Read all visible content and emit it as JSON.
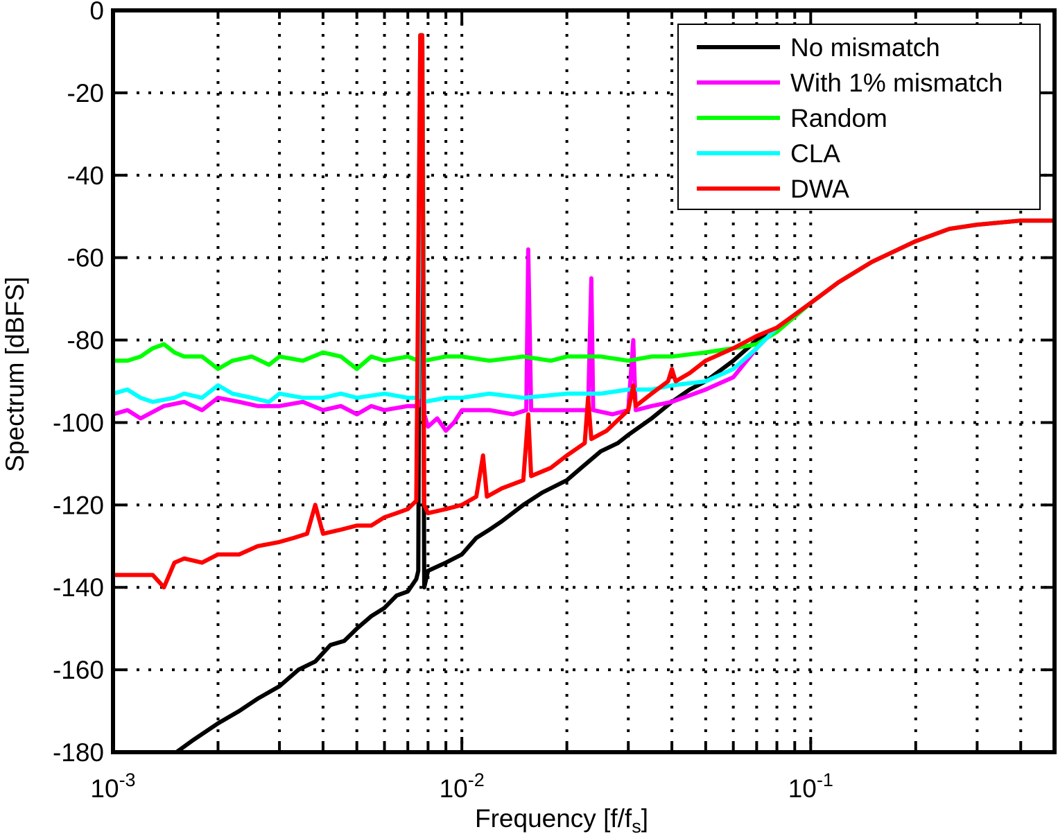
{
  "chart_data": {
    "type": "line",
    "title": "",
    "xlabel": "Frequency [f/f",
    "xlabel_sub": "s",
    "xlabel_end": "]",
    "ylabel": "Spectrum [dBFS]",
    "xscale": "log",
    "xlim": [
      0.001,
      0.5
    ],
    "ylim": [
      -180,
      0
    ],
    "grid": true,
    "legend_position": "top-right",
    "x_ticks": [
      {
        "value": 0.001,
        "base": "10",
        "exp": "-3"
      },
      {
        "value": 0.01,
        "base": "10",
        "exp": "-2"
      },
      {
        "value": 0.1,
        "base": "10",
        "exp": "-1"
      }
    ],
    "y_ticks": [
      0,
      -20,
      -40,
      -60,
      -80,
      -100,
      -120,
      -140,
      -160,
      -180
    ],
    "series": [
      {
        "name": "No mismatch",
        "color": "#000000",
        "points": [
          [
            0.00152,
            -180
          ],
          [
            0.0017,
            -177
          ],
          [
            0.002,
            -173
          ],
          [
            0.0023,
            -170
          ],
          [
            0.0026,
            -167
          ],
          [
            0.003,
            -164
          ],
          [
            0.0034,
            -160
          ],
          [
            0.0038,
            -158
          ],
          [
            0.0042,
            -154
          ],
          [
            0.0046,
            -153
          ],
          [
            0.005,
            -150
          ],
          [
            0.0055,
            -147
          ],
          [
            0.006,
            -145
          ],
          [
            0.0065,
            -142
          ],
          [
            0.007,
            -141
          ],
          [
            0.0074,
            -138
          ],
          [
            0.0075,
            -136
          ],
          [
            0.0076,
            -6
          ],
          [
            0.0077,
            -6
          ],
          [
            0.0078,
            -140
          ],
          [
            0.008,
            -136
          ],
          [
            0.009,
            -134
          ],
          [
            0.01,
            -132
          ],
          [
            0.011,
            -128
          ],
          [
            0.012,
            -126
          ],
          [
            0.013,
            -124
          ],
          [
            0.015,
            -120
          ],
          [
            0.017,
            -117
          ],
          [
            0.02,
            -114
          ],
          [
            0.022,
            -111
          ],
          [
            0.025,
            -107
          ],
          [
            0.028,
            -105
          ],
          [
            0.03,
            -103
          ],
          [
            0.035,
            -99
          ],
          [
            0.04,
            -95
          ],
          [
            0.045,
            -92
          ],
          [
            0.05,
            -90
          ],
          [
            0.06,
            -85
          ],
          [
            0.07,
            -80
          ],
          [
            0.08,
            -77
          ],
          [
            0.1,
            -71
          ],
          [
            0.12,
            -66
          ],
          [
            0.15,
            -61
          ],
          [
            0.2,
            -56
          ],
          [
            0.25,
            -53
          ],
          [
            0.3,
            -52
          ],
          [
            0.4,
            -51
          ],
          [
            0.5,
            -51
          ]
        ]
      },
      {
        "name": "With 1% mismatch",
        "color": "#ff00ff",
        "points": [
          [
            0.001,
            -98
          ],
          [
            0.0011,
            -97
          ],
          [
            0.0012,
            -99
          ],
          [
            0.0014,
            -96
          ],
          [
            0.0016,
            -95
          ],
          [
            0.0018,
            -97
          ],
          [
            0.002,
            -94
          ],
          [
            0.0023,
            -95
          ],
          [
            0.0026,
            -96
          ],
          [
            0.003,
            -96
          ],
          [
            0.0035,
            -95
          ],
          [
            0.004,
            -97
          ],
          [
            0.0045,
            -96
          ],
          [
            0.005,
            -98
          ],
          [
            0.0055,
            -96
          ],
          [
            0.006,
            -97
          ],
          [
            0.007,
            -96
          ],
          [
            0.0075,
            -96
          ],
          [
            0.0076,
            -6
          ],
          [
            0.0077,
            -6
          ],
          [
            0.0078,
            -98
          ],
          [
            0.008,
            -101
          ],
          [
            0.0085,
            -99
          ],
          [
            0.009,
            -102
          ],
          [
            0.0095,
            -100
          ],
          [
            0.01,
            -97
          ],
          [
            0.012,
            -97
          ],
          [
            0.014,
            -98
          ],
          [
            0.0153,
            -97
          ],
          [
            0.0155,
            -58
          ],
          [
            0.0158,
            -97
          ],
          [
            0.018,
            -97
          ],
          [
            0.02,
            -97
          ],
          [
            0.023,
            -97
          ],
          [
            0.0235,
            -65
          ],
          [
            0.0238,
            -97
          ],
          [
            0.027,
            -98
          ],
          [
            0.03,
            -97
          ],
          [
            0.031,
            -80
          ],
          [
            0.0315,
            -97
          ],
          [
            0.035,
            -96
          ],
          [
            0.04,
            -95
          ],
          [
            0.05,
            -92
          ],
          [
            0.06,
            -89
          ],
          [
            0.07,
            -82
          ],
          [
            0.08,
            -77
          ],
          [
            0.1,
            -71
          ],
          [
            0.12,
            -66
          ],
          [
            0.15,
            -61
          ],
          [
            0.2,
            -56
          ],
          [
            0.25,
            -53
          ],
          [
            0.3,
            -52
          ],
          [
            0.4,
            -51
          ],
          [
            0.5,
            -51
          ]
        ]
      },
      {
        "name": "Random",
        "color": "#00ff00",
        "points": [
          [
            0.001,
            -85
          ],
          [
            0.0011,
            -85
          ],
          [
            0.0012,
            -84
          ],
          [
            0.0013,
            -82
          ],
          [
            0.0014,
            -81
          ],
          [
            0.0015,
            -83
          ],
          [
            0.0016,
            -84
          ],
          [
            0.0018,
            -84
          ],
          [
            0.002,
            -87
          ],
          [
            0.0022,
            -85
          ],
          [
            0.0025,
            -84
          ],
          [
            0.0028,
            -86
          ],
          [
            0.003,
            -84
          ],
          [
            0.0035,
            -85
          ],
          [
            0.004,
            -83
          ],
          [
            0.0045,
            -84
          ],
          [
            0.005,
            -87
          ],
          [
            0.0055,
            -84
          ],
          [
            0.006,
            -85
          ],
          [
            0.007,
            -84
          ],
          [
            0.0075,
            -85
          ],
          [
            0.0076,
            -6
          ],
          [
            0.0077,
            -6
          ],
          [
            0.0078,
            -85
          ],
          [
            0.009,
            -84
          ],
          [
            0.01,
            -84
          ],
          [
            0.012,
            -85
          ],
          [
            0.015,
            -84
          ],
          [
            0.018,
            -85
          ],
          [
            0.02,
            -84
          ],
          [
            0.025,
            -84
          ],
          [
            0.03,
            -85
          ],
          [
            0.035,
            -84
          ],
          [
            0.04,
            -84
          ],
          [
            0.05,
            -83
          ],
          [
            0.06,
            -82
          ],
          [
            0.07,
            -81
          ],
          [
            0.08,
            -78
          ],
          [
            0.1,
            -71
          ],
          [
            0.12,
            -66
          ],
          [
            0.15,
            -61
          ],
          [
            0.2,
            -56
          ],
          [
            0.25,
            -53
          ],
          [
            0.3,
            -52
          ],
          [
            0.4,
            -51
          ],
          [
            0.5,
            -51
          ]
        ]
      },
      {
        "name": "CLA",
        "color": "#00ffff",
        "points": [
          [
            0.001,
            -93
          ],
          [
            0.0011,
            -92
          ],
          [
            0.0012,
            -94
          ],
          [
            0.0013,
            -95
          ],
          [
            0.0015,
            -94
          ],
          [
            0.0016,
            -93
          ],
          [
            0.0018,
            -94
          ],
          [
            0.002,
            -91
          ],
          [
            0.0022,
            -93
          ],
          [
            0.0025,
            -94
          ],
          [
            0.0028,
            -95
          ],
          [
            0.003,
            -93
          ],
          [
            0.0035,
            -94
          ],
          [
            0.004,
            -94
          ],
          [
            0.0045,
            -93
          ],
          [
            0.005,
            -94
          ],
          [
            0.006,
            -93
          ],
          [
            0.007,
            -94
          ],
          [
            0.0075,
            -94
          ],
          [
            0.0076,
            -6
          ],
          [
            0.0077,
            -6
          ],
          [
            0.0078,
            -95
          ],
          [
            0.009,
            -94
          ],
          [
            0.01,
            -94
          ],
          [
            0.012,
            -93
          ],
          [
            0.015,
            -94
          ],
          [
            0.02,
            -93
          ],
          [
            0.025,
            -93
          ],
          [
            0.03,
            -92
          ],
          [
            0.035,
            -92
          ],
          [
            0.04,
            -91
          ],
          [
            0.05,
            -90
          ],
          [
            0.06,
            -87
          ],
          [
            0.07,
            -82
          ],
          [
            0.08,
            -77
          ],
          [
            0.1,
            -71
          ],
          [
            0.12,
            -66
          ],
          [
            0.15,
            -61
          ],
          [
            0.2,
            -56
          ],
          [
            0.25,
            -53
          ],
          [
            0.3,
            -52
          ],
          [
            0.4,
            -51
          ],
          [
            0.5,
            -51
          ]
        ]
      },
      {
        "name": "DWA",
        "color": "#ff0000",
        "points": [
          [
            0.001,
            -137
          ],
          [
            0.0012,
            -137
          ],
          [
            0.0013,
            -137
          ],
          [
            0.0014,
            -140
          ],
          [
            0.0015,
            -134
          ],
          [
            0.0016,
            -133
          ],
          [
            0.0018,
            -134
          ],
          [
            0.002,
            -132
          ],
          [
            0.0023,
            -132
          ],
          [
            0.0026,
            -130
          ],
          [
            0.003,
            -129
          ],
          [
            0.0033,
            -128
          ],
          [
            0.0036,
            -127
          ],
          [
            0.0038,
            -120
          ],
          [
            0.004,
            -127
          ],
          [
            0.0045,
            -126
          ],
          [
            0.005,
            -125
          ],
          [
            0.0055,
            -125
          ],
          [
            0.006,
            -123
          ],
          [
            0.0065,
            -122
          ],
          [
            0.007,
            -121
          ],
          [
            0.0074,
            -119
          ],
          [
            0.0076,
            -6
          ],
          [
            0.0077,
            -6
          ],
          [
            0.0078,
            -120
          ],
          [
            0.008,
            -122
          ],
          [
            0.009,
            -121
          ],
          [
            0.01,
            -120
          ],
          [
            0.011,
            -118
          ],
          [
            0.0115,
            -108
          ],
          [
            0.0118,
            -118
          ],
          [
            0.013,
            -116
          ],
          [
            0.015,
            -114
          ],
          [
            0.0155,
            -98
          ],
          [
            0.0158,
            -113
          ],
          [
            0.018,
            -111
          ],
          [
            0.02,
            -108
          ],
          [
            0.0225,
            -105
          ],
          [
            0.023,
            -94
          ],
          [
            0.0235,
            -104
          ],
          [
            0.026,
            -102
          ],
          [
            0.03,
            -97
          ],
          [
            0.031,
            -91
          ],
          [
            0.0315,
            -96
          ],
          [
            0.035,
            -93
          ],
          [
            0.039,
            -90
          ],
          [
            0.04,
            -87
          ],
          [
            0.041,
            -90
          ],
          [
            0.045,
            -88
          ],
          [
            0.05,
            -85
          ],
          [
            0.06,
            -82
          ],
          [
            0.07,
            -79
          ],
          [
            0.08,
            -77
          ],
          [
            0.1,
            -71
          ],
          [
            0.12,
            -66
          ],
          [
            0.15,
            -61
          ],
          [
            0.2,
            -56
          ],
          [
            0.25,
            -53
          ],
          [
            0.3,
            -52
          ],
          [
            0.4,
            -51
          ],
          [
            0.5,
            -51
          ]
        ]
      }
    ]
  }
}
